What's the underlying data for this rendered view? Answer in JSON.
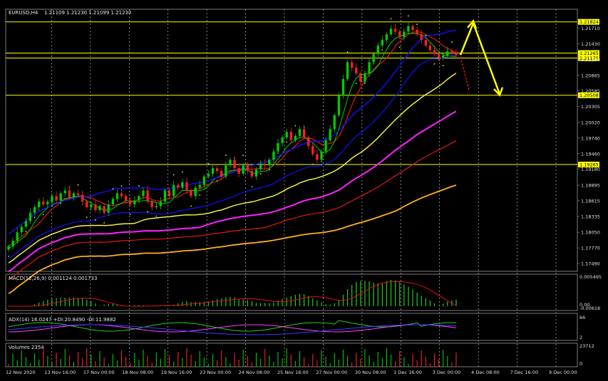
{
  "symbol_header": "EURUSD,H4",
  "ohlc_header": "1.21109 1.21230 1.21099 1.21230",
  "colors": {
    "bg": "#000000",
    "grid": "#d8d8d8",
    "bull": "#00cc00",
    "bear": "#ff2020",
    "level": "#ffff00",
    "ma_blue": "#1010ff",
    "ma_yellow": "#ffff40",
    "ma_red": "#e01818",
    "ma_magenta": "#ff20ff",
    "ma_orange": "#ffb020",
    "macd_hist": "#22cc22",
    "macd_signal": "#e01010"
  },
  "chart_data": [
    {
      "type": "candlestick",
      "panel": "price",
      "y_ticks": [
        "1.21710",
        "1.21430",
        "1.21150",
        "1.20865",
        "1.20585",
        "1.20305",
        "1.20020",
        "1.19740",
        "1.19460",
        "1.19180",
        "1.18895",
        "1.18615",
        "1.18335",
        "1.18050",
        "1.17770",
        "1.17490"
      ],
      "ylim": [
        1.1735,
        1.2205
      ],
      "horizontal_levels": [
        {
          "value": 1.21824,
          "label": "1.21824"
        },
        {
          "value": 1.21265,
          "label": "1.21265"
        },
        {
          "value": 1.21175,
          "label": "1.21175"
        },
        {
          "value": 1.20508,
          "label": "1.20508"
        },
        {
          "value": 1.19265,
          "label": "1.19265"
        }
      ],
      "x_ticks": [
        "12 Nov 2020",
        "13 Nov 16:00",
        "17 Nov 00:00",
        "18 Nov 08:00",
        "19 Nov 16:00",
        "23 Nov 00:00",
        "24 Nov 08:00",
        "25 Nov 16:00",
        "27 Nov 00:00",
        "30 Nov 08:00",
        "1 Dec 16:00",
        "3 Dec 00:00",
        "4 Dec 08:00",
        "7 Dec 16:00",
        "9 Dec 00:00"
      ],
      "close": [
        1.178,
        1.179,
        1.1805,
        1.1815,
        1.1825,
        1.184,
        1.185,
        1.186,
        1.1855,
        1.186,
        1.187,
        1.1862,
        1.1875,
        1.188,
        1.1868,
        1.1875,
        1.1872,
        1.186,
        1.185,
        1.1855,
        1.1845,
        1.1852,
        1.184,
        1.1855,
        1.1865,
        1.1875,
        1.187,
        1.1862,
        1.1855,
        1.1862,
        1.187,
        1.188,
        1.186,
        1.185,
        1.1852,
        1.186,
        1.188,
        1.187,
        1.189,
        1.1885,
        1.1895,
        1.188,
        1.187,
        1.1885,
        1.189,
        1.1905,
        1.191,
        1.192,
        1.1915,
        1.1905,
        1.1925,
        1.1935,
        1.192,
        1.191,
        1.1925,
        1.1915,
        1.1905,
        1.1918,
        1.1928,
        1.1925,
        1.1935,
        1.195,
        1.1965,
        1.1975,
        1.1985,
        1.197,
        1.1978,
        1.199,
        1.1975,
        1.196,
        1.1945,
        1.1935,
        1.195,
        1.197,
        1.199,
        1.2015,
        1.205,
        1.208,
        1.211,
        1.21,
        1.209,
        1.2075,
        1.209,
        1.211,
        1.2125,
        1.214,
        1.215,
        1.216,
        1.217,
        1.2165,
        1.2155,
        1.2165,
        1.2175,
        1.2168,
        1.216,
        1.215,
        1.214,
        1.2132,
        1.2125,
        1.2118,
        1.2122,
        1.213,
        1.2128,
        1.2123
      ]
    },
    {
      "type": "bar",
      "panel": "macd",
      "label": "MACD(12,26,9) 0.001124 0.001733",
      "y_ticks": [
        "0.005495",
        "0.00",
        "-0.00616"
      ]
    },
    {
      "type": "line",
      "panel": "adx",
      "label": "ADX(14) 16.0247 +DI:20.8490 -DI:11.9882",
      "y_ticks": [
        "66",
        "2"
      ]
    },
    {
      "type": "bar",
      "panel": "volumes",
      "label": "Volumes 2354",
      "y_ticks": [
        "23712",
        "0"
      ]
    }
  ]
}
